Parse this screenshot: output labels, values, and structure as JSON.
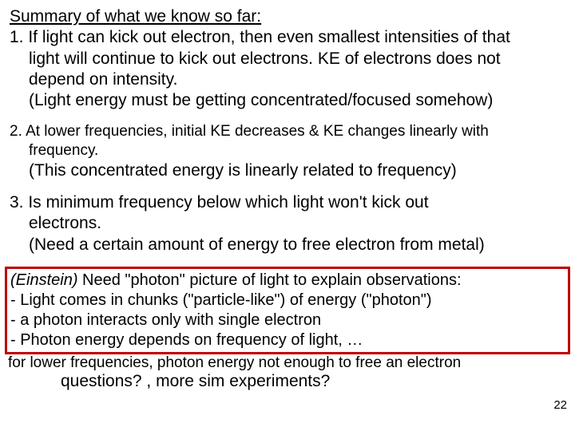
{
  "heading": "Summary of what we know so far:",
  "p1_l1": "1. If light can kick out electron, then even smallest intensities of that",
  "p1_l2": "light will continue to kick out electrons. KE of electrons does not",
  "p1_l3": "depend on intensity.",
  "p1_l4": "(Light energy must be getting concentrated/focused somehow)",
  "p2_l1": "2. At lower frequencies, initial KE decreases & KE changes linearly with",
  "p2_l2": "frequency.",
  "p2_l3": "(This concentrated energy is linearly related to frequency)",
  "p3_l1": "3. Is minimum frequency below which light won't kick out",
  "p3_l2": "electrons.",
  "p3_l3": "(Need a certain amount of energy to free electron from metal)",
  "einstein_label": "(Einstein)",
  "einstein_l1": " Need \"photon\" picture of light to explain observations:",
  "einstein_l2": "- Light comes in chunks (\"particle-like\") of energy (\"photon\")",
  "einstein_l3": "- a photon interacts only with single electron",
  "einstein_l4": "- Photon energy depends on frequency of light, …",
  "footer": "for lower frequencies, photon energy not enough to free an electron",
  "page_num": "22",
  "questions": "questions? , more sim experiments?",
  "colors": {
    "box_border": "#c00000",
    "text": "#000000",
    "background": "#ffffff"
  },
  "fonts": {
    "body_size": 21,
    "small_size": 19,
    "pagenum_size": 15,
    "family": "Arial"
  }
}
